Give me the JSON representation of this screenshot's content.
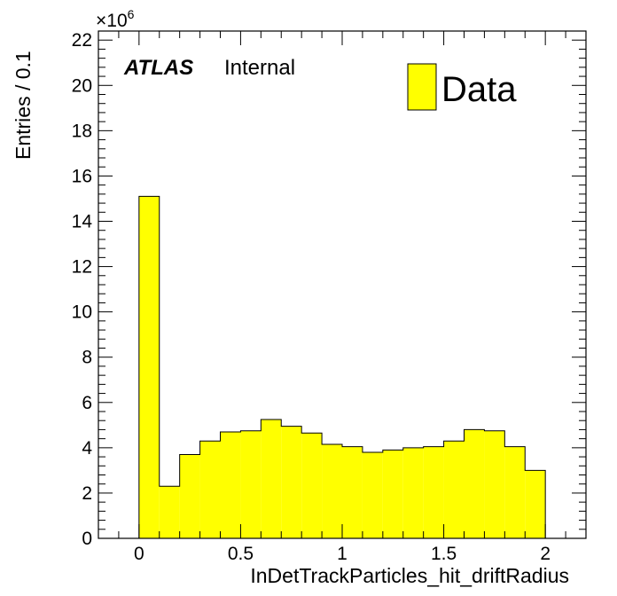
{
  "chart_data": {
    "type": "bar",
    "xlabel": "InDetTrackParticles_hit_driftRadius",
    "ylabel": "Entries / 0.1",
    "xlim": [
      -0.2,
      2.2
    ],
    "ylim": [
      0,
      22.4
    ],
    "y_multiplier_base": "×10",
    "y_multiplier_exp": "6",
    "x_ticks": [
      "0",
      "0.5",
      "1",
      "1.5",
      "2"
    ],
    "x_tick_values": [
      0,
      0.5,
      1,
      1.5,
      2
    ],
    "y_ticks": [
      "0",
      "2",
      "4",
      "6",
      "8",
      "10",
      "12",
      "14",
      "16",
      "18",
      "20",
      "22"
    ],
    "y_tick_values": [
      0,
      2,
      4,
      6,
      8,
      10,
      12,
      14,
      16,
      18,
      20,
      22
    ],
    "bin_width": 0.1,
    "bin_edges_start": 0,
    "series": [
      {
        "name": "Data",
        "color": "#ffff00",
        "values": [
          15.1,
          2.3,
          3.7,
          4.3,
          4.7,
          4.75,
          5.25,
          4.95,
          4.65,
          4.15,
          4.05,
          3.8,
          3.9,
          4.0,
          4.05,
          4.3,
          4.8,
          4.75,
          4.05,
          3.0
        ]
      }
    ],
    "legend_position": "top-right",
    "grid": false
  },
  "annotation": {
    "experiment": "ATLAS",
    "status": "Internal"
  },
  "legend": {
    "label": "Data",
    "color": "#ffff00"
  }
}
